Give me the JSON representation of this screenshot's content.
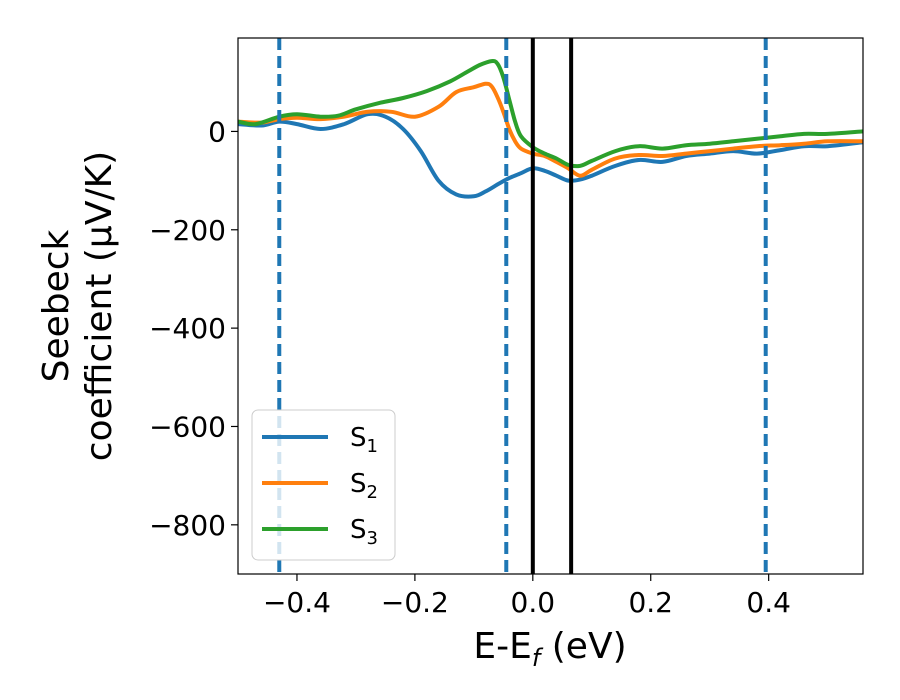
{
  "chart_data": {
    "type": "line",
    "xlabel": {
      "main": "E-E",
      "sub": "f",
      "unit": " (eV)"
    },
    "ylabel": {
      "line1": "Seebeck",
      "line2": "coefficient  (μV/K)"
    },
    "xlim": [
      -0.5,
      0.56
    ],
    "ylim": [
      -900,
      190
    ],
    "xticks": [
      -0.4,
      -0.2,
      0.0,
      0.2,
      0.4
    ],
    "xtick_labels": [
      "−0.4",
      "−0.2",
      "0.0",
      "0.2",
      "0.4"
    ],
    "yticks": [
      0,
      -200,
      -400,
      -600,
      -800
    ],
    "ytick_labels": [
      "0",
      "−200",
      "−400",
      "−600",
      "−800"
    ],
    "grid": false,
    "legend_position": "bottom-left",
    "series": [
      {
        "name": "S",
        "sub": "1",
        "color": "#1f77b4",
        "x": [
          -0.5,
          -0.46,
          -0.43,
          -0.4,
          -0.36,
          -0.32,
          -0.28,
          -0.25,
          -0.22,
          -0.19,
          -0.16,
          -0.13,
          -0.1,
          -0.08,
          -0.06,
          -0.04,
          -0.02,
          0.0,
          0.02,
          0.04,
          0.06,
          0.08,
          0.1,
          0.14,
          0.18,
          0.22,
          0.26,
          0.3,
          0.34,
          0.38,
          0.42,
          0.46,
          0.5,
          0.56
        ],
        "y": [
          15,
          12,
          20,
          15,
          5,
          15,
          35,
          30,
          5,
          -40,
          -100,
          -128,
          -132,
          -122,
          -108,
          -95,
          -85,
          -75,
          -80,
          -90,
          -100,
          -98,
          -90,
          -70,
          -58,
          -62,
          -50,
          -45,
          -40,
          -45,
          -38,
          -30,
          -30,
          -22
        ]
      },
      {
        "name": "S",
        "sub": "2",
        "color": "#ff7f0e",
        "x": [
          -0.5,
          -0.46,
          -0.43,
          -0.4,
          -0.36,
          -0.32,
          -0.28,
          -0.24,
          -0.2,
          -0.16,
          -0.13,
          -0.1,
          -0.08,
          -0.07,
          -0.06,
          -0.05,
          -0.04,
          -0.03,
          -0.02,
          0.0,
          0.02,
          0.04,
          0.06,
          0.08,
          0.1,
          0.14,
          0.18,
          0.22,
          0.26,
          0.3,
          0.34,
          0.38,
          0.42,
          0.46,
          0.5,
          0.56
        ],
        "y": [
          20,
          18,
          25,
          28,
          25,
          30,
          40,
          40,
          30,
          50,
          80,
          90,
          97,
          92,
          70,
          40,
          5,
          -20,
          -35,
          -45,
          -50,
          -62,
          -75,
          -90,
          -78,
          -55,
          -48,
          -50,
          -45,
          -40,
          -35,
          -30,
          -28,
          -25,
          -20,
          -20
        ]
      },
      {
        "name": "S",
        "sub": "3",
        "color": "#2ca02c",
        "x": [
          -0.5,
          -0.47,
          -0.43,
          -0.4,
          -0.36,
          -0.33,
          -0.3,
          -0.26,
          -0.22,
          -0.18,
          -0.14,
          -0.11,
          -0.09,
          -0.07,
          -0.06,
          -0.05,
          -0.04,
          -0.03,
          -0.02,
          0.0,
          0.02,
          0.04,
          0.06,
          0.08,
          0.1,
          0.14,
          0.18,
          0.22,
          0.26,
          0.3,
          0.34,
          0.38,
          0.42,
          0.46,
          0.5,
          0.56
        ],
        "y": [
          20,
          15,
          30,
          35,
          30,
          32,
          45,
          58,
          68,
          82,
          102,
          122,
          135,
          143,
          138,
          110,
          65,
          20,
          -10,
          -32,
          -45,
          -55,
          -68,
          -70,
          -60,
          -40,
          -30,
          -35,
          -28,
          -25,
          -20,
          -15,
          -10,
          -5,
          -5,
          0
        ]
      }
    ],
    "vlines": [
      {
        "x": -0.43,
        "style": "dashed",
        "color": "#1f77b4"
      },
      {
        "x": -0.045,
        "style": "dashed",
        "color": "#1f77b4"
      },
      {
        "x": 0.0,
        "style": "solid",
        "color": "#000000"
      },
      {
        "x": 0.065,
        "style": "solid",
        "color": "#000000"
      },
      {
        "x": 0.395,
        "style": "dashed",
        "color": "#1f77b4"
      }
    ]
  }
}
